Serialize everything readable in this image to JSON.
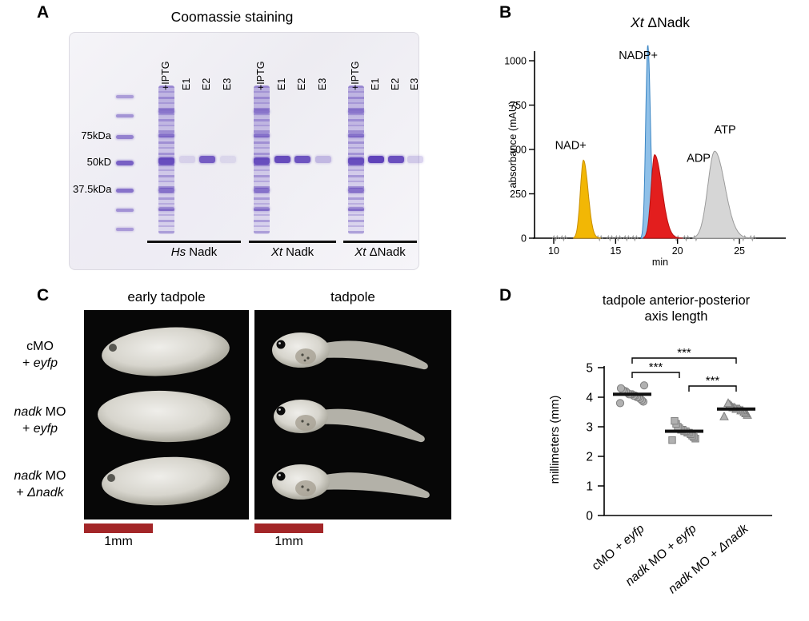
{
  "panelA": {
    "label": "A",
    "title": "Coomassie staining",
    "lane_labels": [
      "+IPTG",
      "E1",
      "E2",
      "E3",
      "+IPTG",
      "E1",
      "E2",
      "E3",
      "+IPTG",
      "E1",
      "E2",
      "E3"
    ],
    "mw_labels": [
      "75kDa",
      "50kD",
      "37.5kDa"
    ],
    "group_labels": [
      {
        "italic": "Hs",
        "rest": " Nadk"
      },
      {
        "italic": "Xt",
        "rest": " Nadk"
      },
      {
        "italic": "Xt",
        "rest": " ΔNadk"
      }
    ],
    "gel_band_color": "#5638b6"
  },
  "panelB": {
    "label": "B"
  },
  "panelC": {
    "label": "C",
    "col_headers": [
      "early tadpole",
      "tadpole"
    ],
    "row_labels": [
      {
        "line1": [
          {
            "t": "cMO",
            "i": false
          }
        ],
        "line2": [
          {
            "t": "+ ",
            "i": false
          },
          {
            "t": "eyfp",
            "i": true
          }
        ]
      },
      {
        "line1": [
          {
            "t": "nadk",
            "i": true
          },
          {
            "t": " MO",
            "i": false
          }
        ],
        "line2": [
          {
            "t": "+ ",
            "i": false
          },
          {
            "t": "eyfp",
            "i": true
          }
        ]
      },
      {
        "line1": [
          {
            "t": "nadk",
            "i": true
          },
          {
            "t": " MO",
            "i": false
          }
        ],
        "line2": [
          {
            "t": "+ ",
            "i": false
          },
          {
            "t": "Δnadk",
            "i": true
          }
        ]
      }
    ],
    "scale_bar_labels": [
      "1mm",
      "1mm"
    ],
    "scale_bar_color": "#a32628"
  },
  "panelD": {
    "label": "D",
    "title_line1": "tadpole anterior-posterior",
    "title_line2": "axis length"
  },
  "chart_data": [
    {
      "type": "area",
      "panel": "B",
      "title": "Xt ΔNadk",
      "title_parts": [
        {
          "t": "Xt",
          "i": true
        },
        {
          "t": " ΔNadk",
          "i": false
        }
      ],
      "xlabel": "min",
      "ylabel": "absorbance (mAU)",
      "xlim": [
        9.6,
        26.4
      ],
      "ylim": [
        0,
        1000
      ],
      "xticks": [
        10,
        15,
        20,
        25
      ],
      "yticks": [
        0,
        250,
        500,
        750,
        1000
      ],
      "peaks": [
        {
          "name": "NAD+",
          "retention_min": 12.4,
          "height_mAU": 440,
          "sigma_min": 0.25,
          "fill": "#f2b705",
          "stroke": "#c98f00"
        },
        {
          "name": "NADP+",
          "retention_min": 17.6,
          "height_mAU": 1090,
          "sigma_min": 0.17,
          "fill": "#8fc0e8",
          "stroke": "#3b86c4"
        },
        {
          "name": "ADP",
          "retention_min": 18.15,
          "height_mAU": 470,
          "sigma_min": 0.28,
          "fill": "#e31e1e",
          "stroke": "#b91010"
        },
        {
          "name": "ATP",
          "retention_min": 23.0,
          "height_mAU": 490,
          "sigma_min": 0.55,
          "fill": "#d6d6d6",
          "stroke": "#9b9b9b"
        }
      ]
    },
    {
      "type": "scatter",
      "panel": "D",
      "title": "tadpole anterior-posterior axis length",
      "ylabel": "millimeters (mm)",
      "ylim": [
        0,
        5
      ],
      "yticks": [
        0,
        1,
        2,
        3,
        4,
        5
      ],
      "groups": [
        {
          "label": "cMO + eyfp",
          "label_parts": [
            {
              "t": "cMO + ",
              "i": false
            },
            {
              "t": "eyfp",
              "i": true
            }
          ],
          "marker": "circle",
          "median": 4.1,
          "values": [
            3.8,
            3.85,
            3.9,
            3.95,
            4.0,
            4.0,
            4.05,
            4.05,
            4.1,
            4.1,
            4.1,
            4.15,
            4.2,
            4.2,
            4.25,
            4.3,
            4.4
          ]
        },
        {
          "label": "nadk MO + eyfp",
          "label_parts": [
            {
              "t": "nadk",
              "i": true
            },
            {
              "t": " MO + ",
              "i": false
            },
            {
              "t": "eyfp",
              "i": true
            }
          ],
          "marker": "square",
          "median": 2.85,
          "values": [
            2.55,
            2.6,
            2.65,
            2.7,
            2.75,
            2.8,
            2.8,
            2.85,
            2.85,
            2.9,
            2.9,
            2.95,
            3.0,
            3.1,
            3.2
          ]
        },
        {
          "label": "nadk MO + Δnadk",
          "label_parts": [
            {
              "t": "nadk",
              "i": true
            },
            {
              "t": " MO + ",
              "i": false
            },
            {
              "t": "Δnadk",
              "i": true
            }
          ],
          "marker": "triangle",
          "median": 3.6,
          "values": [
            3.35,
            3.4,
            3.45,
            3.5,
            3.55,
            3.55,
            3.6,
            3.6,
            3.6,
            3.65,
            3.65,
            3.7,
            3.75,
            3.8
          ]
        }
      ],
      "significance": [
        {
          "pair": [
            0,
            2
          ],
          "label": "***"
        },
        {
          "pair": [
            0,
            1
          ],
          "label": "***"
        },
        {
          "pair": [
            1,
            2
          ],
          "label": "***"
        }
      ]
    }
  ]
}
